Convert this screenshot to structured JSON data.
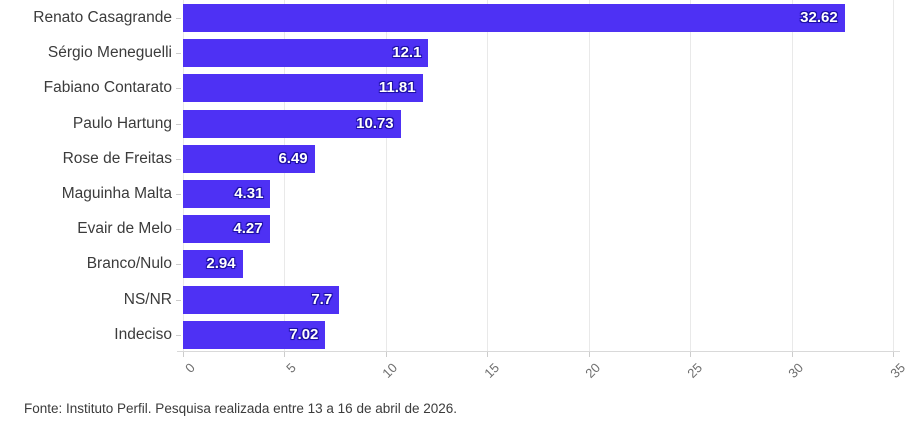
{
  "chart_data": {
    "type": "bar",
    "orientation": "horizontal",
    "title": "",
    "xlabel": "",
    "ylabel": "",
    "categories": [
      "Renato Casagrande",
      "Sérgio Meneguelli",
      "Fabiano Contarato",
      "Paulo Hartung",
      "Rose de Freitas",
      "Maguinha Malta",
      "Evair de Melo",
      "Branco/Nulo",
      "NS/NR",
      "Indeciso"
    ],
    "values": [
      32.62,
      12.1,
      11.81,
      10.73,
      6.49,
      4.31,
      4.27,
      2.94,
      7.7,
      7.02
    ],
    "value_labels": [
      "32.62",
      "12.1",
      "11.81",
      "10.73",
      "6.49",
      "4.31",
      "4.27",
      "2.94",
      "7.7",
      "7.02"
    ],
    "xlim": [
      0,
      35
    ],
    "xticks": [
      0,
      5,
      10,
      15,
      20,
      25,
      30,
      35
    ],
    "grid": "vertical-only",
    "legend": "none",
    "bar_color": "#4e31f4",
    "value_label_color": "#ffffff",
    "value_label_outline_color": "#1e10a6",
    "category_label_color": "#3b3b3b",
    "tick_label_color": "#6e6e6e",
    "gridline_color": "#e9e9e9"
  },
  "footer": {
    "source_note": "Fonte: Instituto Perfil. Pesquisa realizada entre 13 a 16 de abril de 2026."
  }
}
